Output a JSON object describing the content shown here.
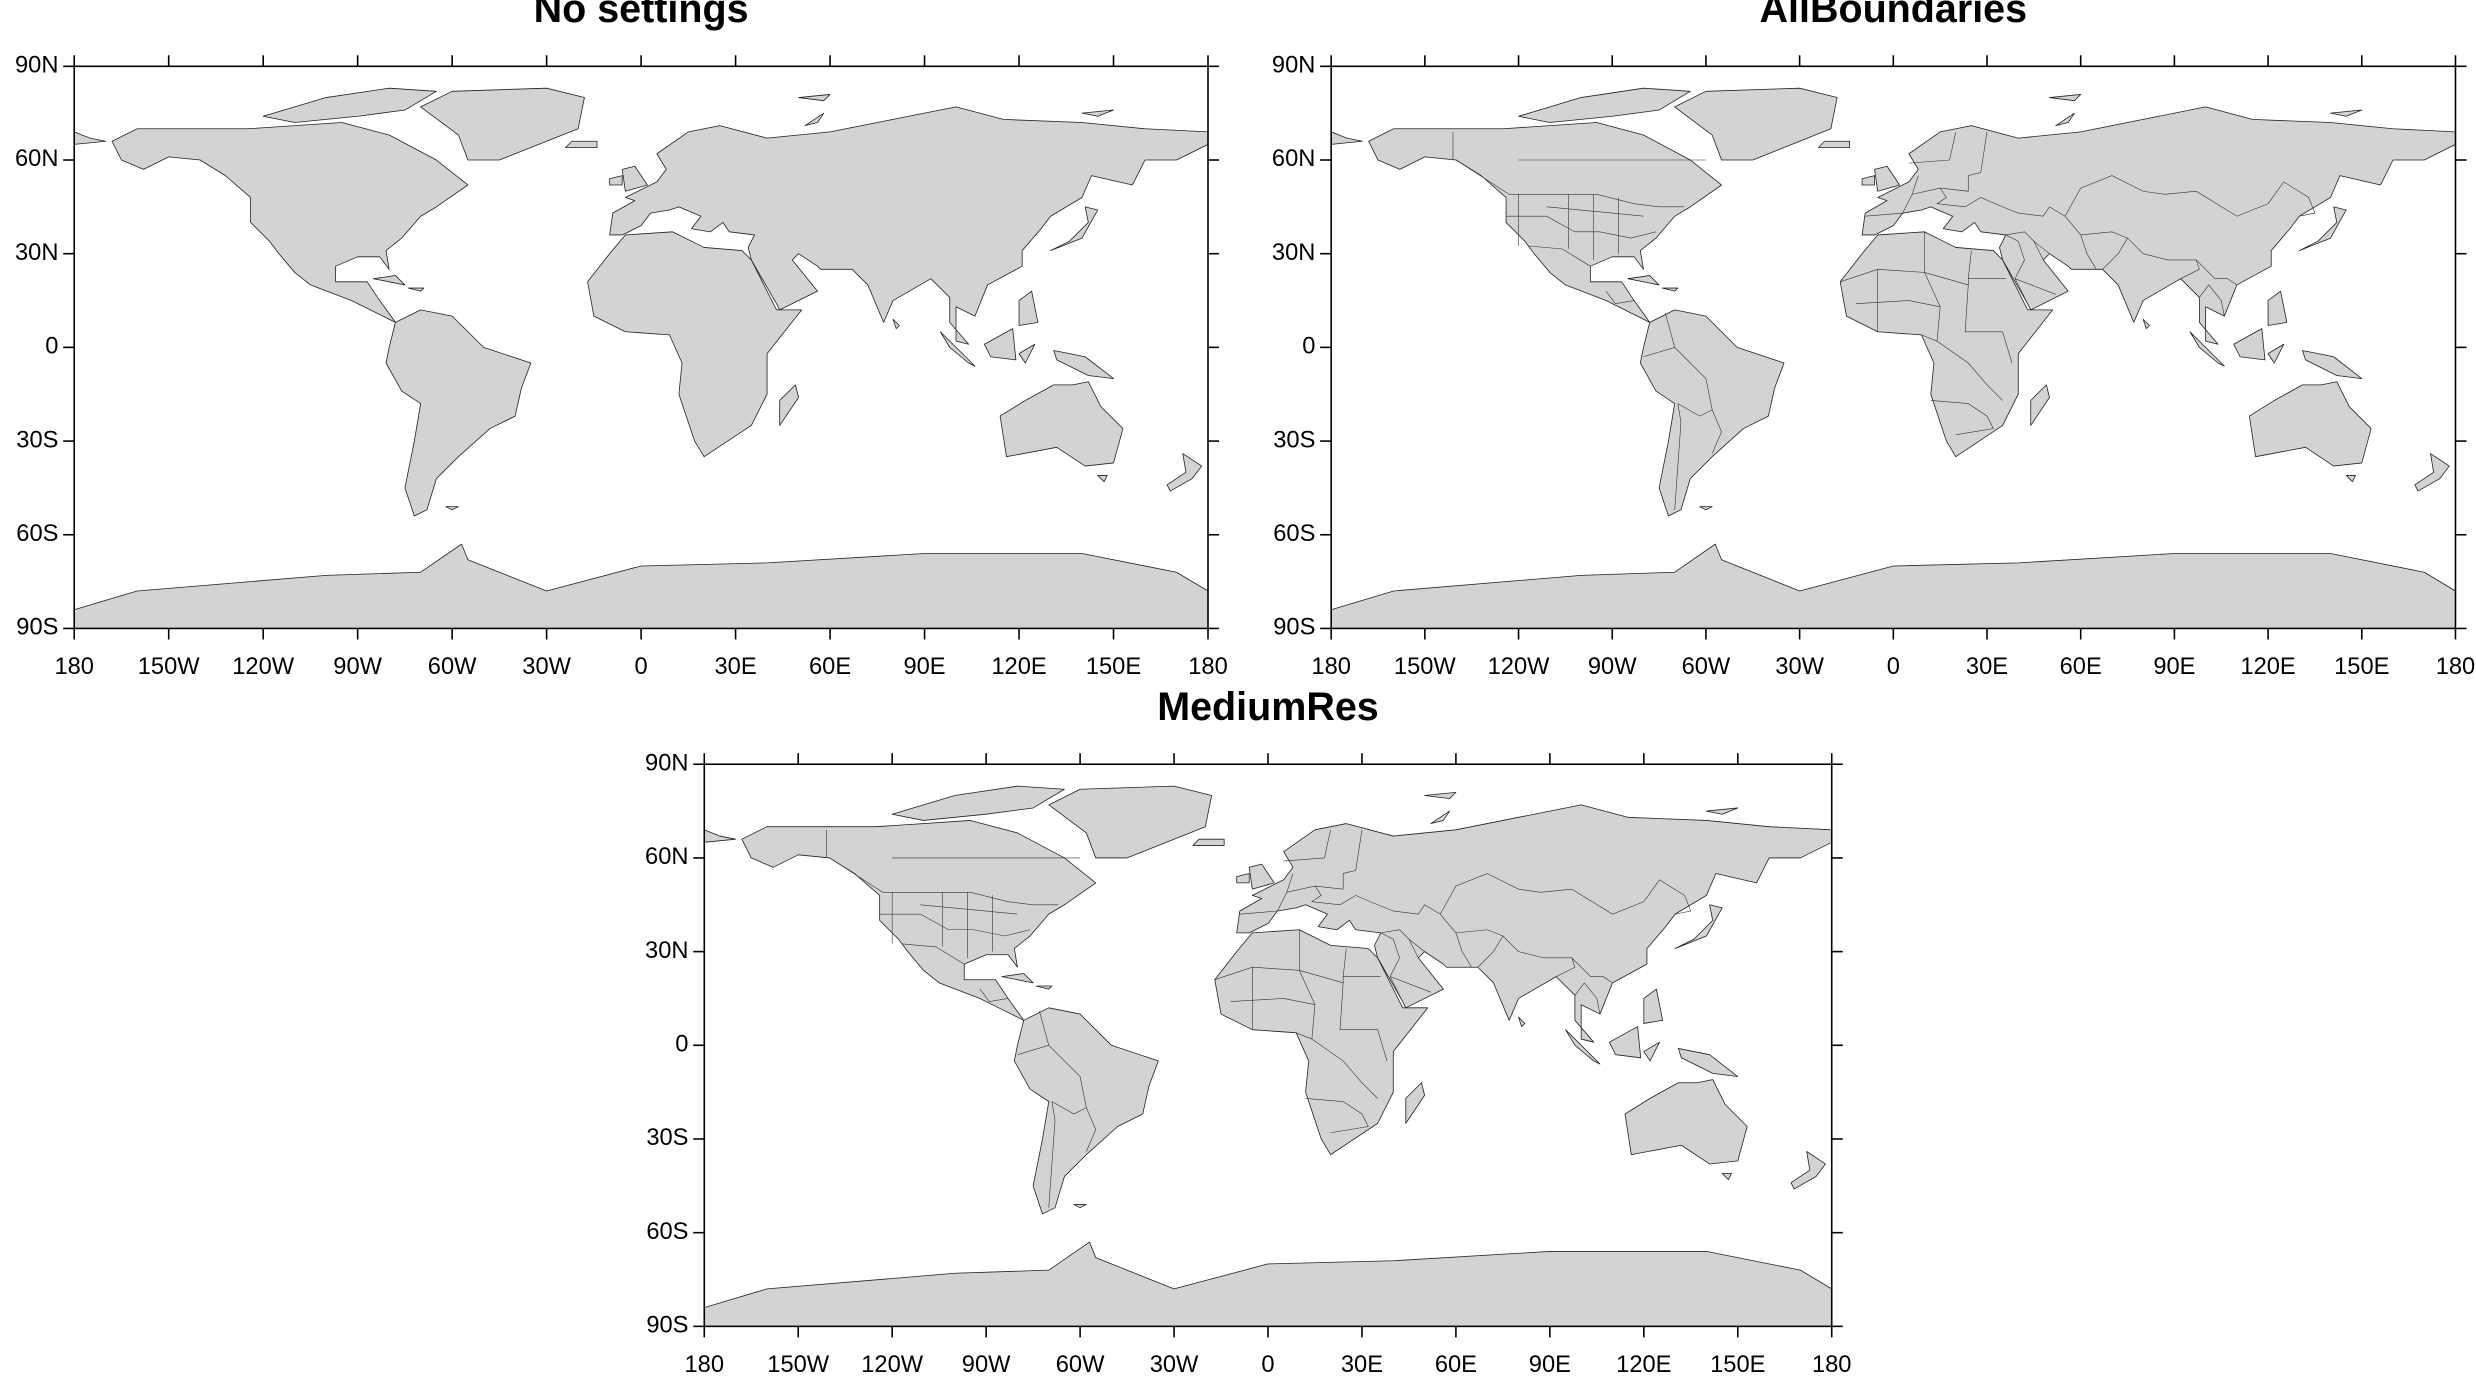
{
  "chart_data": [
    {
      "type": "map",
      "title": "No settings",
      "land_color": "#d3d3d3",
      "xlim": [
        -180,
        180
      ],
      "ylim": [
        -90,
        90
      ],
      "xticks": [
        {
          "value": -180,
          "label": "180"
        },
        {
          "value": -150,
          "label": "150W"
        },
        {
          "value": -120,
          "label": "120W"
        },
        {
          "value": -90,
          "label": "90W"
        },
        {
          "value": -60,
          "label": "60W"
        },
        {
          "value": -30,
          "label": "30W"
        },
        0,
        {
          "value": 30,
          "label": "30E"
        },
        {
          "value": 60,
          "label": "60E"
        },
        {
          "value": 90,
          "label": "90E"
        },
        {
          "value": 120,
          "label": "120E"
        },
        {
          "value": 150,
          "label": "150E"
        },
        180
      ],
      "yticks": [
        {
          "value": 90,
          "label": "90N"
        },
        {
          "value": 60,
          "label": "60N"
        },
        {
          "value": 30,
          "label": "30N"
        },
        0,
        {
          "value": -30,
          "label": "30S"
        },
        {
          "value": -60,
          "label": "60S"
        },
        {
          "value": -90,
          "label": "90S"
        }
      ]
    },
    {
      "type": "map",
      "title": "AllBoundaries",
      "land_color": "#d3d3d3",
      "xlim": [
        -180,
        180
      ],
      "ylim": [
        -90,
        90
      ],
      "xticks": [
        {
          "value": -180,
          "label": "180"
        },
        {
          "value": -150,
          "label": "150W"
        },
        {
          "value": -120,
          "label": "120W"
        },
        {
          "value": -90,
          "label": "90W"
        },
        {
          "value": -60,
          "label": "60W"
        },
        {
          "value": -30,
          "label": "30W"
        },
        0,
        {
          "value": 30,
          "label": "30E"
        },
        {
          "value": 60,
          "label": "60E"
        },
        {
          "value": 90,
          "label": "90E"
        },
        {
          "value": 120,
          "label": "120E"
        },
        {
          "value": 150,
          "label": "150E"
        },
        180
      ],
      "yticks": [
        {
          "value": 90,
          "label": "90N"
        },
        {
          "value": 60,
          "label": "60N"
        },
        {
          "value": 30,
          "label": "30N"
        },
        0,
        {
          "value": -30,
          "label": "30S"
        },
        {
          "value": -60,
          "label": "60S"
        },
        {
          "value": -90,
          "label": "90S"
        }
      ]
    },
    {
      "type": "map",
      "title": "MediumRes",
      "land_color": "#d3d3d3",
      "xlim": [
        -180,
        180
      ],
      "ylim": [
        -90,
        90
      ],
      "xticks": [
        {
          "value": -180,
          "label": "180"
        },
        {
          "value": -150,
          "label": "150W"
        },
        {
          "value": -120,
          "label": "120W"
        },
        {
          "value": -90,
          "label": "90W"
        },
        {
          "value": -60,
          "label": "60W"
        },
        {
          "value": -30,
          "label": "30W"
        },
        0,
        {
          "value": 30,
          "label": "30E"
        },
        {
          "value": 60,
          "label": "60E"
        },
        {
          "value": 90,
          "label": "90E"
        },
        {
          "value": 120,
          "label": "120E"
        },
        {
          "value": 150,
          "label": "150E"
        },
        180
      ],
      "yticks": [
        {
          "value": 90,
          "label": "90N"
        },
        {
          "value": 60,
          "label": "60N"
        },
        {
          "value": 30,
          "label": "30N"
        },
        0,
        {
          "value": -30,
          "label": "30S"
        },
        {
          "value": -60,
          "label": "60S"
        },
        {
          "value": -90,
          "label": "90S"
        }
      ]
    }
  ]
}
